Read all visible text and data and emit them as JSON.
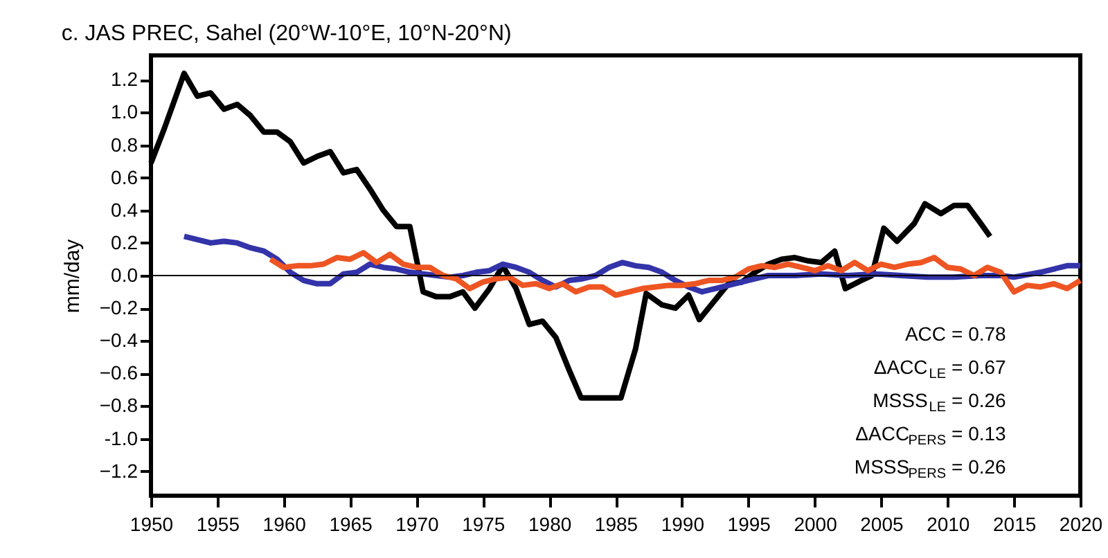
{
  "chart_data": {
    "type": "line",
    "title": "c. JAS PREC, Sahel (20°W-10°E, 10°N-20°N)",
    "ylabel": "mm/day",
    "xlim": [
      1950,
      2020
    ],
    "xticks": [
      1950,
      1955,
      1960,
      1965,
      1970,
      1975,
      1980,
      1985,
      1990,
      1995,
      2000,
      2005,
      2010,
      2015,
      2020
    ],
    "ylim": [
      -1.35,
      1.35
    ],
    "yticks": [
      -1.2,
      {
        "value": -1.0,
        "label": "-1.0"
      },
      -0.8,
      -0.6,
      -0.4,
      -0.2,
      {
        "value": 0,
        "label": "0.0"
      },
      0.2,
      0.4,
      0.6,
      0.8,
      {
        "value": 1.0,
        "label": "1.0"
      },
      1.2
    ],
    "grid": false,
    "legend": false,
    "line_style": "solid",
    "marker": "none",
    "ref_lines": [
      {
        "axis": "y",
        "value": 0,
        "color": "#000000"
      }
    ],
    "annotations": [
      "ACC = 0.78",
      "ΔACC$_{LE}$ = 0.67",
      "MSSS$_{LE}$ = 0.26",
      "ΔACC$_{PERS}$ = 0.13",
      "MSSS$_{PERS}$ = 0.26"
    ],
    "series": [
      {
        "color": "#000000",
        "x": [
          1950,
          1951,
          1952.5,
          1953.5,
          1954.5,
          1955.5,
          1956.5,
          1957.5,
          1958.5,
          1959.5,
          1960.5,
          1961.5,
          1962.5,
          1963.5,
          1964.5,
          1965.5,
          1966.5,
          1967.5,
          1968.5,
          1969.5,
          1970.5,
          1971.5,
          1972.5,
          1973.5,
          1974.4,
          1975.5,
          1976.5,
          1977.5,
          1978.5,
          1979.5,
          1980.5,
          1981.5,
          1982.4,
          1983.5,
          1984.5,
          1985.4,
          1986.5,
          1987.3,
          1988.5,
          1989.5,
          1990.5,
          1991.3,
          1992.5,
          1993.5,
          1994.5,
          1995.5,
          1996.5,
          1997.5,
          1998.5,
          1999.5,
          2000.5,
          2001.5,
          2002.3,
          2003.5,
          2004.3,
          2005.2,
          2006.2,
          2007.5,
          2008.3,
          2009.5,
          2010.5,
          2011.5,
          2012.5,
          2013.2
        ],
        "values": [
          0.69,
          0.9,
          1.24,
          1.1,
          1.12,
          1.02,
          1.05,
          0.98,
          0.88,
          0.88,
          0.82,
          0.69,
          0.73,
          0.76,
          0.63,
          0.65,
          0.53,
          0.4,
          0.3,
          0.3,
          -0.1,
          -0.13,
          -0.13,
          -0.1,
          -0.2,
          -0.08,
          0.06,
          -0.08,
          -0.3,
          -0.28,
          -0.38,
          -0.58,
          -0.75,
          -0.75,
          -0.75,
          -0.75,
          -0.45,
          -0.11,
          -0.18,
          -0.2,
          -0.12,
          -0.27,
          -0.15,
          -0.05,
          -0.04,
          0.02,
          0.07,
          0.1,
          0.11,
          0.09,
          0.08,
          0.15,
          -0.08,
          -0.03,
          0.0,
          0.29,
          0.21,
          0.32,
          0.44,
          0.38,
          0.43,
          0.43,
          0.32,
          0.24
        ]
      },
      {
        "color": "#3333aa",
        "x": [
          1952.5,
          1953.5,
          1954.5,
          1955.5,
          1956.5,
          1957.5,
          1958.5,
          1959.5,
          1960.5,
          1961.5,
          1962.5,
          1963.5,
          1964.5,
          1965.5,
          1966.5,
          1967.5,
          1968.5,
          1969.5,
          1970.5,
          1971.5,
          1972.5,
          1973.5,
          1974.5,
          1975.5,
          1976.5,
          1977.5,
          1978.5,
          1979.5,
          1980.5,
          1981.5,
          1982.5,
          1983.5,
          1984.5,
          1985.5,
          1986.5,
          1987.5,
          1988.5,
          1989.5,
          1990.5,
          1991.5,
          1992.5,
          1993.5,
          1994.5,
          1995.5,
          1996.5,
          1998.5,
          2000.5,
          2002.5,
          2004.5,
          2006.5,
          2008.5,
          2010.5,
          2012.5,
          2014,
          2015,
          2017,
          2019,
          2020
        ],
        "values": [
          0.24,
          0.22,
          0.2,
          0.21,
          0.2,
          0.17,
          0.15,
          0.1,
          0.02,
          -0.03,
          -0.05,
          -0.05,
          0.01,
          0.02,
          0.07,
          0.05,
          0.04,
          0.02,
          0.01,
          0.0,
          -0.01,
          0.0,
          0.02,
          0.03,
          0.07,
          0.05,
          0.02,
          -0.03,
          -0.07,
          -0.03,
          -0.02,
          0.0,
          0.05,
          0.08,
          0.06,
          0.05,
          0.02,
          -0.03,
          -0.07,
          -0.1,
          -0.08,
          -0.06,
          -0.04,
          -0.02,
          0.0,
          0.0,
          0.01,
          0.0,
          0.01,
          0.0,
          -0.01,
          -0.01,
          0.0,
          0.0,
          -0.01,
          0.02,
          0.06,
          0.06
        ]
      },
      {
        "color": "#ee5522",
        "x": [
          1959,
          1960,
          1961,
          1962,
          1963,
          1964,
          1965,
          1966,
          1967,
          1968,
          1969,
          1970,
          1971,
          1972,
          1973,
          1974,
          1975,
          1976,
          1977,
          1978,
          1979,
          1980,
          1981,
          1982,
          1983,
          1984,
          1985,
          1986,
          1987,
          1988,
          1989,
          1990,
          1991,
          1992,
          1993,
          1994,
          1995,
          1996,
          1997,
          1998,
          1999,
          2000,
          2001,
          2002,
          2003,
          2004,
          2005,
          2006,
          2007,
          2008,
          2009,
          2010,
          2011,
          2012,
          2013,
          2014,
          2015,
          2016,
          2017,
          2018,
          2019,
          2020
        ],
        "values": [
          0.1,
          0.05,
          0.06,
          0.06,
          0.07,
          0.11,
          0.1,
          0.14,
          0.08,
          0.13,
          0.07,
          0.05,
          0.05,
          0.0,
          -0.02,
          -0.08,
          -0.04,
          -0.02,
          -0.01,
          -0.06,
          -0.05,
          -0.08,
          -0.05,
          -0.1,
          -0.07,
          -0.07,
          -0.12,
          -0.1,
          -0.08,
          -0.07,
          -0.06,
          -0.06,
          -0.05,
          -0.03,
          -0.03,
          -0.01,
          0.04,
          0.06,
          0.05,
          0.07,
          0.05,
          0.03,
          0.06,
          0.03,
          0.08,
          0.03,
          0.07,
          0.05,
          0.07,
          0.08,
          0.11,
          0.05,
          0.04,
          0.0,
          0.05,
          0.02,
          -0.1,
          -0.06,
          -0.07,
          -0.05,
          -0.08,
          -0.03
        ]
      }
    ]
  }
}
